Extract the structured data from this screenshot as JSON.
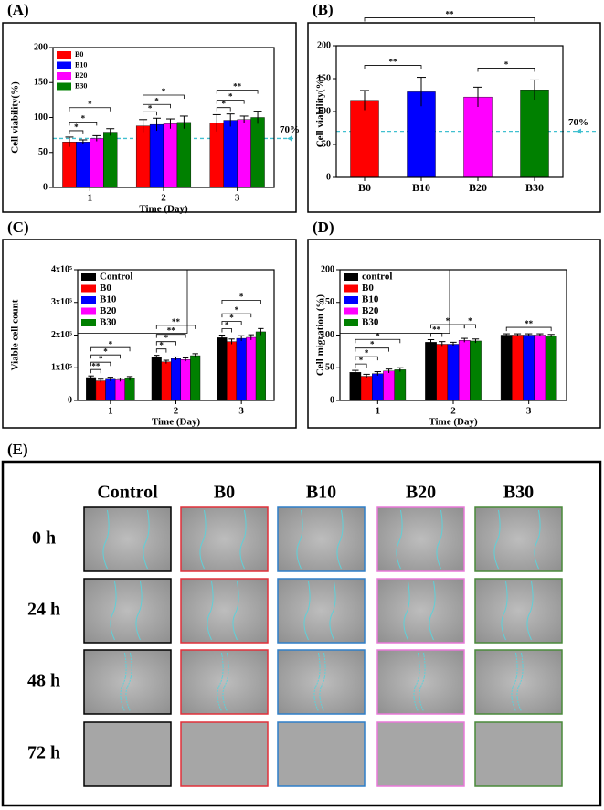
{
  "chart_data": [
    {
      "type": "bar",
      "panel_label": "(A)",
      "y_label": "Cell viability(%)",
      "x_label": "Time (Day)",
      "categories": [
        "1",
        "2",
        "3"
      ],
      "series": [
        {
          "name": "B0",
          "color": "#ff0000",
          "values": [
            65,
            88,
            92
          ],
          "errors": [
            7,
            9,
            12
          ]
        },
        {
          "name": "B10",
          "color": "#0000ff",
          "values": [
            65,
            90,
            96
          ],
          "errors": [
            3,
            9,
            9
          ]
        },
        {
          "name": "B20",
          "color": "#ff00ff",
          "values": [
            70,
            91,
            97
          ],
          "errors": [
            4,
            7,
            5
          ]
        },
        {
          "name": "B30",
          "color": "#008000",
          "values": [
            79,
            93,
            100
          ],
          "errors": [
            5,
            9,
            9
          ]
        }
      ],
      "ylim": [
        0,
        200
      ],
      "yticks": [
        0,
        50,
        100,
        150,
        200
      ],
      "threshold": {
        "value": 70,
        "label": "70%"
      },
      "legend": "upper left",
      "legend_frame": false,
      "brackets": [
        {
          "category": 0,
          "bars": [
            0,
            1
          ],
          "label": "*"
        },
        {
          "category": 0,
          "bars": [
            0,
            2
          ],
          "label": "*"
        },
        {
          "category": 0,
          "bars": [
            0,
            3
          ],
          "label": "*"
        },
        {
          "category": 1,
          "bars": [
            0,
            1
          ],
          "label": "*"
        },
        {
          "category": 1,
          "bars": [
            0,
            2
          ],
          "label": "*"
        },
        {
          "category": 1,
          "bars": [
            0,
            3
          ],
          "label": "*"
        },
        {
          "category": 2,
          "bars": [
            0,
            1
          ],
          "label": "*"
        },
        {
          "category": 2,
          "bars": [
            0,
            2
          ],
          "label": "*"
        },
        {
          "category": 2,
          "bars": [
            0,
            3
          ],
          "label": "**"
        }
      ]
    },
    {
      "type": "bar",
      "panel_label": "(B)",
      "y_label": "Cell viability(%)",
      "categories": [
        "B0",
        "B10",
        "B20",
        "B30"
      ],
      "values": [
        117,
        130,
        122,
        133
      ],
      "errors": [
        15,
        22,
        15,
        15
      ],
      "colors": [
        "#ff0000",
        "#0000ff",
        "#ff00ff",
        "#008000"
      ],
      "ylim": [
        0,
        200
      ],
      "yticks": [
        0,
        50,
        100,
        150,
        200
      ],
      "threshold": {
        "value": 70,
        "label": "70%"
      },
      "brackets": [
        {
          "bars": [
            0,
            1
          ],
          "label": "**"
        },
        {
          "bars": [
            2,
            3
          ],
          "label": "*"
        },
        {
          "bars": [
            0,
            3
          ],
          "label": "**"
        }
      ]
    },
    {
      "type": "bar",
      "panel_label": "(C)",
      "y_label": "Viable cell count",
      "x_label": "Time (Day)",
      "categories": [
        "1",
        "2",
        "3"
      ],
      "series": [
        {
          "name": "Control",
          "color": "#000000",
          "values": [
            70000,
            132000,
            192000
          ],
          "errors": [
            5000,
            6000,
            8000
          ]
        },
        {
          "name": "B0",
          "color": "#ff0000",
          "values": [
            60000,
            118000,
            180000
          ],
          "errors": [
            5000,
            5000,
            8000
          ]
        },
        {
          "name": "B10",
          "color": "#0000ff",
          "values": [
            65000,
            128000,
            190000
          ],
          "errors": [
            6000,
            5000,
            8000
          ]
        },
        {
          "name": "B20",
          "color": "#ff00ff",
          "values": [
            63000,
            125000,
            193000
          ],
          "errors": [
            5000,
            5000,
            8000
          ]
        },
        {
          "name": "B30",
          "color": "#008000",
          "values": [
            67000,
            137000,
            210000
          ],
          "errors": [
            6000,
            6000,
            10000
          ]
        }
      ],
      "ylim": [
        0,
        400000
      ],
      "yticks": [
        {
          "value": 0,
          "label": "0"
        },
        {
          "value": 100000,
          "label": "1x10⁵"
        },
        {
          "value": 200000,
          "label": "2x10⁵"
        },
        {
          "value": 300000,
          "label": "3x10⁵"
        },
        {
          "value": 400000,
          "label": "4x10⁵"
        }
      ],
      "legend": "upper left",
      "legend_frame": true,
      "brackets": [
        {
          "category": 0,
          "bars": [
            0,
            1
          ],
          "label": "**"
        },
        {
          "category": 0,
          "bars": [
            0,
            2
          ],
          "label": "*"
        },
        {
          "category": 0,
          "bars": [
            0,
            3
          ],
          "label": "*"
        },
        {
          "category": 0,
          "bars": [
            0,
            4
          ],
          "label": "*"
        },
        {
          "category": 1,
          "bars": [
            0,
            1
          ],
          "label": "*"
        },
        {
          "category": 1,
          "bars": [
            0,
            2
          ],
          "label": "*"
        },
        {
          "category": 1,
          "bars": [
            0,
            3
          ],
          "label": "**"
        },
        {
          "category": 1,
          "bars": [
            0,
            4
          ],
          "label": "**"
        },
        {
          "category": 2,
          "bars": [
            0,
            1
          ],
          "label": "*"
        },
        {
          "category": 2,
          "bars": [
            0,
            2
          ],
          "label": "*"
        },
        {
          "category": 2,
          "bars": [
            0,
            3
          ],
          "label": "*"
        },
        {
          "category": 2,
          "bars": [
            0,
            4
          ],
          "label": "*"
        }
      ]
    },
    {
      "type": "bar",
      "panel_label": "(D)",
      "y_label": "Cell migration (%)",
      "x_label": "Time (Day)",
      "categories": [
        "1",
        "2",
        "3"
      ],
      "series": [
        {
          "name": "control",
          "color": "#000000",
          "values": [
            43,
            89,
            100
          ],
          "errors": [
            3,
            4,
            2
          ]
        },
        {
          "name": "B0",
          "color": "#ff0000",
          "values": [
            37,
            86,
            100
          ],
          "errors": [
            3,
            4,
            2
          ]
        },
        {
          "name": "B10",
          "color": "#0000ff",
          "values": [
            41,
            86,
            100
          ],
          "errors": [
            3,
            3,
            2
          ]
        },
        {
          "name": "B20",
          "color": "#ff00ff",
          "values": [
            45,
            92,
            100
          ],
          "errors": [
            3,
            3,
            2
          ]
        },
        {
          "name": "B30",
          "color": "#008000",
          "values": [
            47,
            91,
            99
          ],
          "errors": [
            3,
            3,
            2
          ]
        }
      ],
      "ylim": [
        0,
        200
      ],
      "yticks": [
        0,
        50,
        100,
        150,
        200
      ],
      "legend": "upper left",
      "legend_frame": true,
      "brackets": [
        {
          "category": 0,
          "bars": [
            0,
            1
          ],
          "label": "*"
        },
        {
          "category": 0,
          "bars": [
            0,
            2
          ],
          "label": "*"
        },
        {
          "category": 0,
          "bars": [
            0,
            3
          ],
          "label": "*"
        },
        {
          "category": 0,
          "bars": [
            0,
            4
          ],
          "label": "*"
        },
        {
          "category": 1,
          "bars": [
            0,
            1
          ],
          "label": "**"
        },
        {
          "category": 1,
          "bars": [
            0,
            3
          ],
          "label": "*"
        },
        {
          "category": 1,
          "bars": [
            3,
            4
          ],
          "label": "*"
        },
        {
          "category": 2,
          "bars": [
            0,
            4
          ],
          "label": "**"
        }
      ]
    }
  ],
  "wound_assay": {
    "panel_label": "(E)",
    "columns": [
      {
        "name": "Control",
        "border_color": "#000000"
      },
      {
        "name": "B0",
        "border_color": "#e0303a"
      },
      {
        "name": "B10",
        "border_color": "#2f7fc8"
      },
      {
        "name": "B20",
        "border_color": "#e878d8"
      },
      {
        "name": "B30",
        "border_color": "#4a8a3a"
      }
    ],
    "rows": [
      "0 h",
      "24 h",
      "48 h",
      "72 h"
    ]
  }
}
